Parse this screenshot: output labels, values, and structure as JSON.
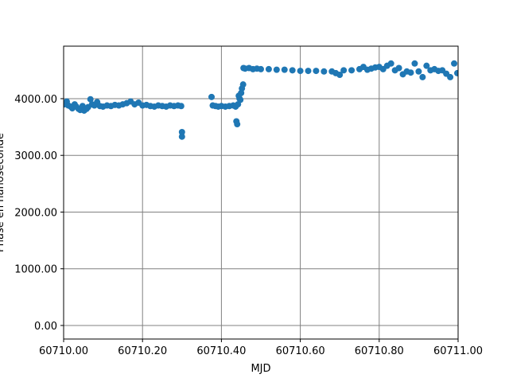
{
  "chart_data": {
    "type": "scatter",
    "xlabel": "MJD",
    "ylabel": "Phase en nanoseconde",
    "xlim": [
      60710.0,
      60711.0
    ],
    "ylim": [
      -239,
      4926
    ],
    "xticks": [
      {
        "value": 60710.0,
        "label": "60710.00"
      },
      {
        "value": 60710.2,
        "label": "60710.20"
      },
      {
        "value": 60710.4,
        "label": "60710.40"
      },
      {
        "value": 60710.6,
        "label": "60710.60"
      },
      {
        "value": 60710.8,
        "label": "60710.80"
      },
      {
        "value": 60711.0,
        "label": "60711.00"
      }
    ],
    "yticks": [
      {
        "value": 0,
        "label": "0.00"
      },
      {
        "value": 1000,
        "label": "1000.00"
      },
      {
        "value": 2000,
        "label": "2000.00"
      },
      {
        "value": 3000,
        "label": "3000.00"
      },
      {
        "value": 4000,
        "label": "4000.00"
      }
    ],
    "grid": true,
    "color": "#1f77b4",
    "x": [
      60710.002,
      60710.008,
      60710.012,
      60710.018,
      60710.022,
      60710.028,
      60710.032,
      60710.038,
      60710.042,
      60710.048,
      60710.052,
      60710.058,
      60710.062,
      60710.068,
      60710.072,
      60710.078,
      60710.085,
      60710.092,
      60710.1,
      60710.11,
      60710.12,
      60710.13,
      60710.14,
      60710.15,
      60710.16,
      60710.17,
      60710.18,
      60710.19,
      60710.2,
      60710.21,
      60710.22,
      60710.23,
      60710.24,
      60710.25,
      60710.26,
      60710.27,
      60710.28,
      60710.29,
      60710.298,
      60710.3,
      60710.3,
      60710.375,
      60710.378,
      60710.385,
      60710.392,
      60710.4,
      60710.41,
      60710.42,
      60710.43,
      60710.436,
      60710.438,
      60710.44,
      60710.442,
      60710.444,
      60710.446,
      60710.448,
      60710.45,
      60710.452,
      60710.455,
      60710.456,
      60710.46,
      60710.47,
      60710.48,
      60710.49,
      60710.5,
      60710.52,
      60710.54,
      60710.56,
      60710.58,
      60710.6,
      60710.62,
      60710.64,
      60710.66,
      60710.68,
      60710.69,
      60710.7,
      60710.71,
      60710.73,
      60710.75,
      60710.76,
      60710.77,
      60710.78,
      60710.79,
      60710.8,
      60710.81,
      60710.82,
      60710.83,
      60710.84,
      60710.85,
      60710.86,
      60710.87,
      60710.88,
      60710.89,
      60710.9,
      60710.91,
      60710.92,
      60710.93,
      60710.94,
      60710.95,
      60710.96,
      60710.97,
      60710.98,
      60710.99,
      60710.998
    ],
    "values": [
      3900,
      3950,
      3880,
      3860,
      3830,
      3900,
      3860,
      3820,
      3800,
      3870,
      3790,
      3820,
      3850,
      3990,
      3900,
      3880,
      3940,
      3870,
      3860,
      3880,
      3870,
      3890,
      3880,
      3900,
      3920,
      3950,
      3900,
      3930,
      3880,
      3890,
      3870,
      3860,
      3880,
      3870,
      3860,
      3880,
      3870,
      3880,
      3870,
      3410,
      3330,
      4030,
      3880,
      3870,
      3860,
      3870,
      3860,
      3870,
      3880,
      3860,
      3600,
      3550,
      3900,
      4050,
      4000,
      3980,
      4100,
      4180,
      4250,
      4540,
      4530,
      4540,
      4520,
      4530,
      4520,
      4520,
      4510,
      4510,
      4500,
      4490,
      4490,
      4490,
      4480,
      4480,
      4450,
      4420,
      4500,
      4500,
      4520,
      4560,
      4510,
      4530,
      4550,
      4560,
      4520,
      4580,
      4620,
      4500,
      4540,
      4430,
      4480,
      4460,
      4620,
      4480,
      4380,
      4580,
      4500,
      4520,
      4490,
      4500,
      4440,
      4380,
      4620,
      4450
    ]
  }
}
